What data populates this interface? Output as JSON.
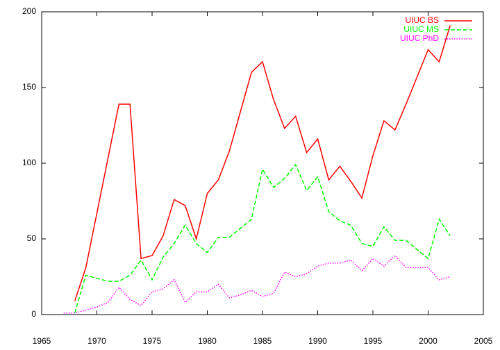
{
  "chart_data": {
    "type": "line",
    "x": [
      1967,
      1968,
      1969,
      1970,
      1971,
      1972,
      1973,
      1974,
      1975,
      1976,
      1977,
      1978,
      1979,
      1980,
      1981,
      1982,
      1983,
      1984,
      1985,
      1986,
      1987,
      1988,
      1989,
      1990,
      1991,
      1992,
      1993,
      1994,
      1995,
      1996,
      1997,
      1998,
      1999,
      2000,
      2001,
      2002
    ],
    "series": [
      {
        "name": "UIUC BS",
        "color": "#ff0000",
        "dash": "none",
        "values": [
          null,
          9,
          31,
          67,
          103,
          139,
          139,
          37,
          39,
          52,
          76,
          72,
          50,
          80,
          89,
          108,
          134,
          160,
          167,
          142,
          123,
          131,
          107,
          116,
          89,
          98,
          88,
          77,
          105,
          128,
          122,
          139,
          157,
          175,
          167,
          191
        ]
      },
      {
        "name": "UIUC MS",
        "color": "#00ff00",
        "dash": "6,3",
        "values": [
          null,
          1,
          26,
          24,
          22,
          22,
          26,
          36,
          23,
          38,
          47,
          59,
          47,
          41,
          51,
          51,
          57,
          63,
          96,
          84,
          90,
          99,
          82,
          91,
          68,
          62,
          59,
          47,
          45,
          58,
          49,
          49,
          43,
          37,
          63,
          52
        ]
      },
      {
        "name": "UIUC PhD",
        "color": "#ff00ff",
        "dash": "1.5,2",
        "values": [
          1,
          1,
          3,
          5,
          8,
          18,
          10,
          6,
          15,
          17,
          23,
          8,
          15,
          15,
          20,
          11,
          13,
          16,
          12,
          14,
          28,
          25,
          27,
          32,
          34,
          34,
          36,
          29,
          37,
          32,
          39,
          31,
          31,
          31,
          23,
          25
        ]
      }
    ],
    "xlim": [
      1965,
      2005
    ],
    "xticks": [
      1965,
      1970,
      1975,
      1980,
      1985,
      1990,
      1995,
      2000,
      2005
    ],
    "ylim": [
      0,
      200
    ],
    "yticks": [
      0,
      50,
      100,
      150,
      200
    ],
    "legend": "upper right"
  }
}
